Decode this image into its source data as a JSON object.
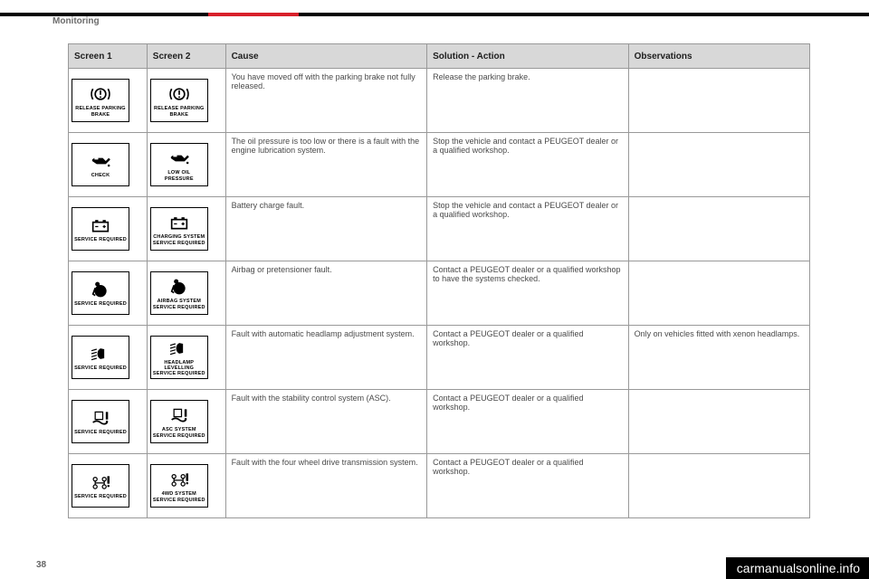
{
  "section": "Monitoring",
  "page": "38",
  "watermark": "carmanualsonline.info",
  "headers": {
    "s1": "Screen 1",
    "s2": "Screen 2",
    "cause": "Cause",
    "solution": "Solution - Action",
    "obs": "Observations"
  },
  "rows": [
    {
      "icon1_name": "brake-warning-icon",
      "icon1_label": "RELEASE PARKING BRAKE",
      "icon2_name": "brake-warning-icon",
      "icon2_label": "RELEASE PARKING BRAKE",
      "cause": "You have moved off with the parking brake not fully released.",
      "solution": "Release the parking brake.",
      "obs": ""
    },
    {
      "icon1_name": "oil-can-icon",
      "icon1_label": "CHECK",
      "icon2_name": "oil-can-icon",
      "icon2_label": "LOW OIL PRESSURE",
      "cause": "The oil pressure is too low or there is a fault with the engine lubrication system.",
      "solution": "Stop the vehicle and contact a PEUGEOT dealer or a qualified workshop.",
      "obs": ""
    },
    {
      "icon1_name": "battery-icon",
      "icon1_label": "SERVICE REQUIRED",
      "icon2_name": "battery-icon",
      "icon2_label": "CHARGING SYSTEM SERVICE REQUIRED",
      "cause": "Battery charge fault.",
      "solution": "Stop the vehicle and contact a PEUGEOT dealer or a qualified workshop.",
      "obs": ""
    },
    {
      "icon1_name": "airbag-icon",
      "icon1_label": "SERVICE REQUIRED",
      "icon2_name": "airbag-icon",
      "icon2_label": "AIRBAG SYSTEM SERVICE REQUIRED",
      "cause": "Airbag or pretensioner fault.",
      "solution": "Contact a PEUGEOT dealer or a qualified workshop to have the systems checked.",
      "obs": ""
    },
    {
      "icon1_name": "headlamp-icon",
      "icon1_label": "SERVICE REQUIRED",
      "icon2_name": "headlamp-icon",
      "icon2_label": "HEADLAMP LEVELLING SERVICE REQUIRED",
      "cause": "Fault with automatic headlamp adjustment system.",
      "solution": "Contact a PEUGEOT dealer or a qualified workshop.",
      "obs": "Only on vehicles fitted with xenon headlamps."
    },
    {
      "icon1_name": "asc-icon",
      "icon1_label": "SERVICE REQUIRED",
      "icon2_name": "asc-icon",
      "icon2_label": "ASC SYSTEM SERVICE REQUIRED",
      "cause": "Fault with the stability control system (ASC).",
      "solution": "Contact a PEUGEOT dealer or a qualified workshop.",
      "obs": ""
    },
    {
      "icon1_name": "4wd-icon",
      "icon1_label": "SERVICE REQUIRED",
      "icon2_name": "4wd-icon",
      "icon2_label": "4WD SYSTEM SERVICE REQUIRED",
      "cause": "Fault with the four wheel drive transmission system.",
      "solution": "Contact a PEUGEOT dealer or a qualified workshop.",
      "obs": ""
    }
  ]
}
